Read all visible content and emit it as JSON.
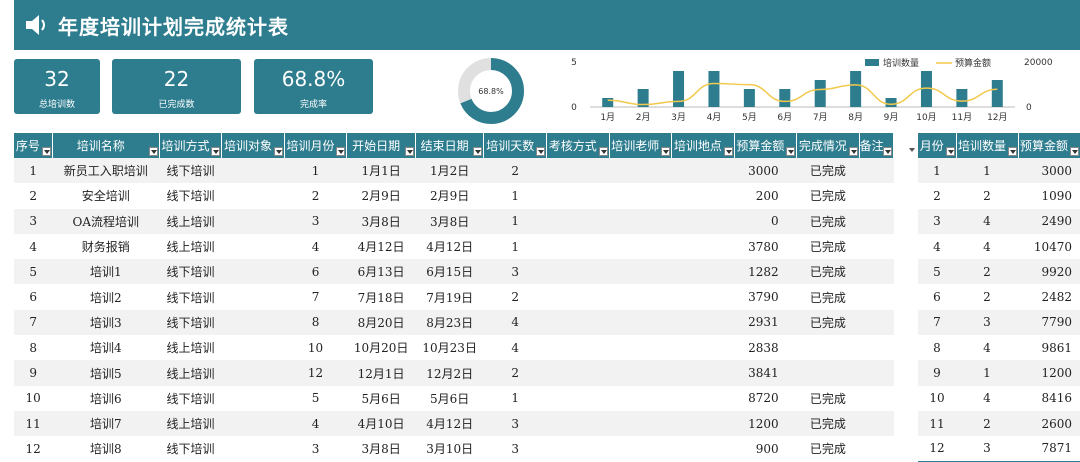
{
  "title": "年度培训计划完成统计表",
  "kpis": [
    {
      "value": "32",
      "label": "总培训数"
    },
    {
      "value": "22",
      "label": "已完成数"
    },
    {
      "value": "68.8%",
      "label": "完成率"
    }
  ],
  "colors": {
    "primary": "#2e7d8f",
    "line": "#f2c94c",
    "track": "#e0e0e0"
  },
  "chart_data": [
    {
      "type": "pie",
      "label": "68.8%",
      "values": [
        68.8,
        31.2
      ]
    },
    {
      "type": "bar",
      "categories": [
        "1月",
        "2月",
        "3月",
        "4月",
        "5月",
        "6月",
        "7月",
        "8月",
        "9月",
        "10月",
        "11月",
        "12月"
      ],
      "series": [
        {
          "name": "培训数量",
          "type": "bar",
          "axis": "left",
          "values": [
            1,
            2,
            4,
            4,
            2,
            2,
            3,
            4,
            1,
            4,
            2,
            3
          ]
        },
        {
          "name": "预算金额",
          "type": "line",
          "axis": "right",
          "values": [
            3000,
            1090,
            2490,
            10470,
            9920,
            2482,
            7790,
            9861,
            1200,
            8416,
            2600,
            7871
          ]
        }
      ],
      "y_left_ticks": [
        "0",
        "5"
      ],
      "y_right_ticks": [
        "0",
        "20000"
      ],
      "ylim_left": [
        0,
        5
      ],
      "ylim_right": [
        0,
        20000
      ],
      "legend": "top-right"
    }
  ],
  "main_table": {
    "headers": [
      "序号",
      "培训名称",
      "培训方式",
      "培训对象",
      "培训月份",
      "开始日期",
      "结束日期",
      "培训天数",
      "考核方式",
      "培训老师",
      "培训地点",
      "预算金额",
      "完成情况",
      "备注"
    ],
    "rows": [
      [
        "1",
        "新员工入职培训",
        "线下培训",
        "",
        "1",
        "1月1日",
        "1月2日",
        "2",
        "",
        "",
        "",
        "3000",
        "已完成",
        ""
      ],
      [
        "2",
        "安全培训",
        "线下培训",
        "",
        "2",
        "2月9日",
        "2月9日",
        "1",
        "",
        "",
        "",
        "200",
        "已完成",
        ""
      ],
      [
        "3",
        "OA流程培训",
        "线上培训",
        "",
        "3",
        "3月8日",
        "3月8日",
        "1",
        "",
        "",
        "",
        "0",
        "已完成",
        ""
      ],
      [
        "4",
        "财务报销",
        "线上培训",
        "",
        "4",
        "4月12日",
        "4月12日",
        "1",
        "",
        "",
        "",
        "3780",
        "已完成",
        ""
      ],
      [
        "5",
        "培训1",
        "线下培训",
        "",
        "6",
        "6月13日",
        "6月15日",
        "3",
        "",
        "",
        "",
        "1282",
        "已完成",
        ""
      ],
      [
        "6",
        "培训2",
        "线下培训",
        "",
        "7",
        "7月18日",
        "7月19日",
        "2",
        "",
        "",
        "",
        "3790",
        "已完成",
        ""
      ],
      [
        "7",
        "培训3",
        "线下培训",
        "",
        "8",
        "8月20日",
        "8月23日",
        "4",
        "",
        "",
        "",
        "2931",
        "已完成",
        ""
      ],
      [
        "8",
        "培训4",
        "线上培训",
        "",
        "10",
        "10月20日",
        "10月23日",
        "4",
        "",
        "",
        "",
        "2838",
        "",
        ""
      ],
      [
        "9",
        "培训5",
        "线上培训",
        "",
        "12",
        "12月1日",
        "12月2日",
        "2",
        "",
        "",
        "",
        "3841",
        "",
        ""
      ],
      [
        "10",
        "培训6",
        "线下培训",
        "",
        "5",
        "5月6日",
        "5月6日",
        "1",
        "",
        "",
        "",
        "8720",
        "已完成",
        ""
      ],
      [
        "11",
        "培训7",
        "线上培训",
        "",
        "4",
        "4月10日",
        "4月12日",
        "3",
        "",
        "",
        "",
        "1200",
        "已完成",
        ""
      ],
      [
        "12",
        "培训8",
        "线下培训",
        "",
        "3",
        "3月8日",
        "3月10日",
        "3",
        "",
        "",
        "",
        "900",
        "已完成",
        ""
      ]
    ]
  },
  "summary_table": {
    "headers": [
      "月份",
      "培训数量",
      "预算金额"
    ],
    "rows": [
      [
        "1",
        "1",
        "3000"
      ],
      [
        "2",
        "2",
        "1090"
      ],
      [
        "3",
        "4",
        "2490"
      ],
      [
        "4",
        "4",
        "10470"
      ],
      [
        "5",
        "2",
        "9920"
      ],
      [
        "6",
        "2",
        "2482"
      ],
      [
        "7",
        "3",
        "7790"
      ],
      [
        "8",
        "4",
        "9861"
      ],
      [
        "9",
        "1",
        "1200"
      ],
      [
        "10",
        "4",
        "8416"
      ],
      [
        "11",
        "2",
        "2600"
      ],
      [
        "12",
        "3",
        "7871"
      ]
    ]
  }
}
